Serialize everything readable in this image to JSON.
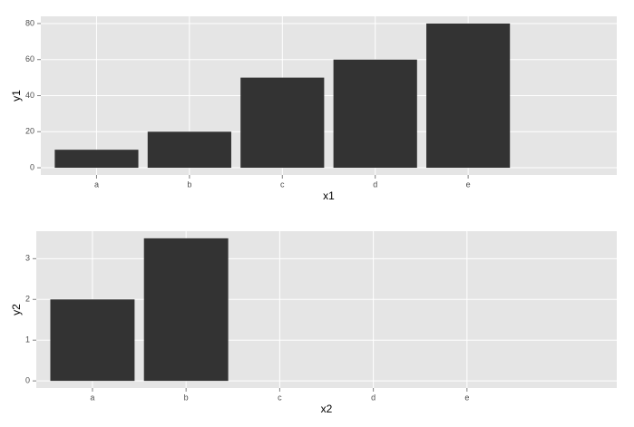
{
  "chart_data": [
    {
      "type": "bar",
      "categories": [
        "a",
        "b",
        "c",
        "d",
        "e"
      ],
      "values": [
        10,
        20,
        50,
        60,
        80
      ],
      "color": "#333333",
      "x_label": "x1",
      "y_label": "y1",
      "ylim": [
        -4,
        84
      ],
      "yticks": [
        0,
        20,
        40,
        60,
        80
      ],
      "grid": true
    },
    {
      "type": "bar",
      "categories": [
        "a",
        "b",
        "c",
        "d",
        "e"
      ],
      "values": [
        2,
        3.5,
        null,
        null,
        null
      ],
      "color": "#333333",
      "x_label": "x2",
      "y_label": "y2",
      "ylim": [
        -0.175,
        3.675
      ],
      "yticks": [
        0,
        1,
        2,
        3
      ],
      "grid": true
    }
  ]
}
